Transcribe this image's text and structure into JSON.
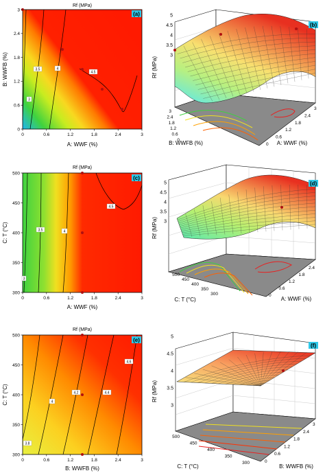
{
  "colors": {
    "contour_low": "#1fb5f0",
    "contour_mid1": "#3fd23f",
    "contour_mid2": "#f0f020",
    "contour_high": "#ff2000",
    "surface_low": "#58e8f0",
    "surface_high": "#e83020",
    "floor": "#808080",
    "point": "#b01010",
    "panel_label_bg": "#2fc8e8"
  },
  "chart_data": [
    {
      "type": "heatmap",
      "panel_label": "(a)",
      "title": "Rf (MPa)",
      "xlabel": "A: WWF (%)",
      "ylabel": "B: WWFB (%)",
      "xticks": [
        "0",
        "0.6",
        "1.2",
        "1.8",
        "2.4",
        "3"
      ],
      "yticks": [
        "0",
        "0.6",
        "1.2",
        "1.8",
        "2.4",
        "3"
      ],
      "xlim": [
        0,
        3
      ],
      "ylim": [
        0,
        3
      ],
      "contour_labels": [
        "3",
        "3.5",
        "4",
        "4.5"
      ],
      "points": [
        {
          "x": 0,
          "y": 3
        },
        {
          "x": 1,
          "y": 2
        },
        {
          "x": 1.5,
          "y": 1.5
        },
        {
          "x": 2,
          "y": 1
        },
        {
          "x": 2.5,
          "y": 0.5
        }
      ]
    },
    {
      "type": "surface",
      "panel_label": "(b)",
      "zlabel": "Rf (MPa)",
      "zticks": [
        "3",
        "3.5",
        "4",
        "4.5",
        "5"
      ],
      "xlabel": "A: WWF (%)",
      "xticks": [
        "0",
        "0.6",
        "1.2",
        "1.8",
        "2.4",
        "3"
      ],
      "ylabel": "B: WWFB (%)",
      "yticks": [
        "0",
        "0.6",
        "1.2",
        "1.8",
        "2.4",
        "3"
      ]
    },
    {
      "type": "heatmap",
      "panel_label": "(c)",
      "title": "Rf (MPa)",
      "xlabel": "A: WWF (%)",
      "ylabel": "C: T (°C)",
      "xticks": [
        "0",
        "0.6",
        "1.2",
        "1.8",
        "2.4",
        "3"
      ],
      "yticks": [
        "300",
        "350",
        "400",
        "450",
        "500"
      ],
      "xlim": [
        0,
        3
      ],
      "ylim": [
        300,
        500
      ],
      "contour_labels": [
        "3",
        "3.5",
        "4",
        "4.5"
      ],
      "points": [
        {
          "x": 1.5,
          "y": 500
        },
        {
          "x": 1.5,
          "y": 400
        },
        {
          "x": 1.5,
          "y": 300
        }
      ]
    },
    {
      "type": "surface",
      "panel_label": "(d)",
      "zlabel": "Rf (MPa)",
      "zticks": [
        "3",
        "3.5",
        "4",
        "4.5",
        "5"
      ],
      "xlabel": "A: WWF (%)",
      "xticks": [
        "0",
        "0.6",
        "1.2",
        "1.8",
        "2.4"
      ],
      "ylabel": "C: T (°C)",
      "yticks": [
        "300",
        "350",
        "400",
        "450",
        "500"
      ]
    },
    {
      "type": "heatmap",
      "panel_label": "(e)",
      "title": "Rf (MPa)",
      "xlabel": "B: WWFB (%)",
      "ylabel": "C: T (°C)",
      "xticks": [
        "0",
        "0.6",
        "1.2",
        "1.8",
        "2.4",
        "3"
      ],
      "yticks": [
        "300",
        "350",
        "400",
        "450",
        "500"
      ],
      "xlim": [
        0,
        3
      ],
      "ylim": [
        300,
        500
      ],
      "contour_labels": [
        "3.8",
        "4",
        "4.2",
        "4.4",
        "4.6"
      ],
      "points": [
        {
          "x": 1.5,
          "y": 500
        },
        {
          "x": 1.5,
          "y": 400
        },
        {
          "x": 1.5,
          "y": 300
        }
      ]
    },
    {
      "type": "surface",
      "panel_label": "(f)",
      "zlabel": "Rf (MPa)",
      "zticks": [
        "3",
        "3.5",
        "4",
        "4.5",
        "5"
      ],
      "xlabel": "B: WWFB (%)",
      "xticks": [
        "0",
        "0.6",
        "1.2",
        "1.8",
        "2.4",
        "3"
      ],
      "ylabel": "C: T (°C)",
      "yticks": [
        "300",
        "350",
        "400",
        "450",
        "500"
      ]
    }
  ]
}
